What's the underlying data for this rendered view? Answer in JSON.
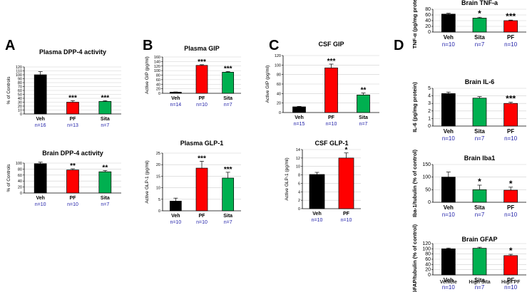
{
  "figure": {
    "panel_letters": [
      "A",
      "B",
      "C",
      "D"
    ]
  },
  "colors": {
    "Veh": "#000000",
    "PF": "#ff0000",
    "Sita": "#00b050",
    "n_label": "#1f1fa8"
  },
  "chart_data": [
    {
      "id": "plasma_dpp4",
      "type": "bar",
      "panel": "A",
      "title": "Plasma DPP-4 activity",
      "ylabel": "% of Controls",
      "ylim": [
        0,
        120
      ],
      "yticks": [
        0,
        10,
        20,
        30,
        40,
        50,
        60,
        70,
        80,
        90,
        100,
        110,
        120
      ],
      "categories": [
        "Veh",
        "PF",
        "Sita"
      ],
      "values": [
        100,
        30,
        32
      ],
      "errors": [
        8,
        4,
        2
      ],
      "sig": [
        "",
        "***",
        "***"
      ],
      "n": [
        "n=16",
        "n=13",
        "n=7"
      ]
    },
    {
      "id": "brain_dpp4",
      "type": "bar",
      "panel": "A",
      "title": "Brain DPP-4 activity",
      "ylabel": "% of Controls",
      "ylim": [
        0,
        100
      ],
      "yticks": [
        0,
        20,
        40,
        60,
        80,
        100
      ],
      "categories": [
        "Veh",
        "PF",
        "Sita"
      ],
      "values": [
        98,
        77,
        71
      ],
      "errors": [
        5,
        4,
        4
      ],
      "sig": [
        "",
        "**",
        "**"
      ],
      "n": [
        "n=10",
        "n=10",
        "n=7"
      ]
    },
    {
      "id": "plasma_gip",
      "type": "bar",
      "panel": "B",
      "title": "Plasma GIP",
      "ylabel": "Active GIP (pg/ml)",
      "ylim": [
        0,
        160
      ],
      "yticks": [
        0,
        20,
        40,
        60,
        80,
        100,
        120,
        140,
        160
      ],
      "categories": [
        "Veh",
        "PF",
        "Sita"
      ],
      "values": [
        5,
        123,
        93
      ],
      "errors": [
        1,
        3,
        3
      ],
      "sig": [
        "",
        "***",
        "***"
      ],
      "n": [
        "n=14",
        "n=10",
        "n=7"
      ]
    },
    {
      "id": "plasma_glp1",
      "type": "bar",
      "panel": "B",
      "title": "Plasma GLP-1",
      "ylabel": "Active GLP-1 (pg/ml)",
      "ylim": [
        0,
        25
      ],
      "yticks": [
        0,
        5,
        10,
        15,
        20,
        25
      ],
      "categories": [
        "Veh",
        "PF",
        "Sita"
      ],
      "values": [
        4.2,
        18.5,
        14.2
      ],
      "errors": [
        1.3,
        3.0,
        2.5
      ],
      "sig": [
        "",
        "***",
        "***"
      ],
      "n": [
        "n=10",
        "n=10",
        "n=7"
      ]
    },
    {
      "id": "csf_gip",
      "type": "bar",
      "panel": "C",
      "title": "CSF GIP",
      "ylabel": "Active GIP (pg/ml)",
      "ylim": [
        0,
        120
      ],
      "yticks": [
        0,
        20,
        40,
        60,
        80,
        100,
        120
      ],
      "categories": [
        "Veh",
        "PF",
        "Sita"
      ],
      "values": [
        12,
        94,
        37
      ],
      "errors": [
        1,
        8,
        4
      ],
      "sig": [
        "",
        "***",
        "**"
      ],
      "n": [
        "n=15",
        "n=10",
        "n=7"
      ]
    },
    {
      "id": "csf_glp1",
      "type": "bar",
      "panel": "C",
      "title": "CSF GLP-1",
      "ylabel": "Active GLP-1 (pg/ml)",
      "ylim": [
        0,
        14
      ],
      "yticks": [
        0,
        2,
        4,
        6,
        8,
        10,
        12,
        14
      ],
      "categories": [
        "Veh",
        "PF"
      ],
      "values": [
        8.1,
        12.0
      ],
      "errors": [
        0.5,
        1.2
      ],
      "sig": [
        "",
        "*"
      ],
      "n": [
        "n=10",
        "n=10"
      ]
    },
    {
      "id": "brain_tnfa",
      "type": "bar",
      "panel": "D",
      "title": "Brain TNF-a",
      "ylabel": "TNF-α (pg/mg protein)",
      "ylim": [
        0,
        80
      ],
      "yticks": [
        0,
        20,
        40,
        60,
        80
      ],
      "categories": [
        "Veh",
        "Sita",
        "PF"
      ],
      "values": [
        63,
        49,
        40
      ],
      "errors": [
        3,
        3,
        2
      ],
      "sig": [
        "",
        "*",
        "***"
      ],
      "n": [
        "n=10",
        "n=7",
        "n=10"
      ]
    },
    {
      "id": "brain_il6",
      "type": "bar",
      "panel": "D",
      "title": "Brain IL-6",
      "ylabel": "IL-6 (pg/mg protein)",
      "ylim": [
        0,
        5
      ],
      "yticks": [
        0,
        1,
        2,
        3,
        4,
        5
      ],
      "categories": [
        "Veh",
        "Sita",
        "PF"
      ],
      "values": [
        4.3,
        3.7,
        3.0
      ],
      "errors": [
        0.2,
        0.2,
        0.15
      ],
      "sig": [
        "",
        "",
        "***"
      ],
      "n": [
        "n=10",
        "n=7",
        "n=10"
      ]
    },
    {
      "id": "brain_iba1",
      "type": "bar",
      "panel": "D",
      "title": "Brain Iba1",
      "ylabel": "Iba-1/tubulin (% of control)",
      "ylim": [
        0,
        150
      ],
      "yticks": [
        0,
        50,
        100,
        150
      ],
      "categories": [
        "Veh",
        "Sita",
        "PF"
      ],
      "values": [
        100,
        50,
        48
      ],
      "errors": [
        20,
        18,
        12
      ],
      "sig": [
        "",
        "*",
        "*"
      ],
      "n": [
        "n=10",
        "n=7",
        "n=10"
      ]
    },
    {
      "id": "brain_gfap",
      "type": "bar",
      "panel": "D",
      "title": "Brain GFAP",
      "ylabel": "GFAP/tubulin (% of control)",
      "ylim": [
        0,
        120
      ],
      "yticks": [
        0,
        20,
        40,
        60,
        80,
        100,
        120
      ],
      "categories": [
        "Veh",
        "Sita",
        "PF"
      ],
      "values": [
        100,
        102,
        74
      ],
      "errors": [
        3,
        4,
        5
      ],
      "sig": [
        "",
        "",
        "*"
      ],
      "n": [
        "n=10",
        "n=7",
        "n=10"
      ],
      "overlap_labels": [
        "Vehicle",
        "High Sita",
        "High PF"
      ]
    }
  ]
}
